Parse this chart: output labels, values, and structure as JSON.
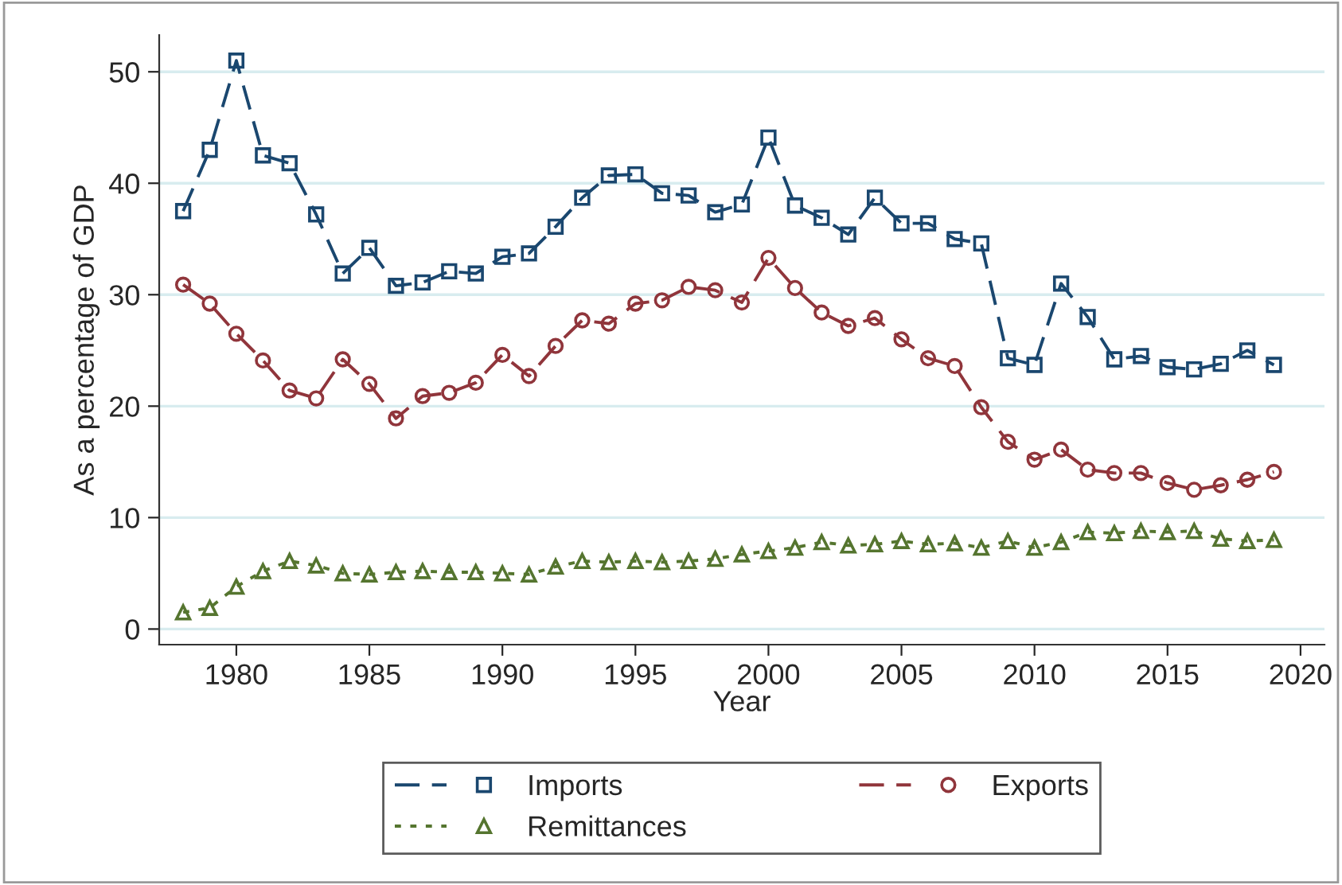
{
  "chart_data": {
    "type": "line",
    "xlabel": "Year",
    "ylabel": "As a percentage of GDP",
    "x": [
      1978,
      1979,
      1980,
      1981,
      1982,
      1983,
      1984,
      1985,
      1986,
      1987,
      1988,
      1989,
      1990,
      1991,
      1992,
      1993,
      1994,
      1995,
      1996,
      1997,
      1998,
      1999,
      2000,
      2001,
      2002,
      2003,
      2004,
      2005,
      2006,
      2007,
      2008,
      2009,
      2010,
      2011,
      2012,
      2013,
      2014,
      2015,
      2016,
      2017,
      2018,
      2019
    ],
    "series": [
      {
        "name": "Imports",
        "color": "#1a476f",
        "marker": "square",
        "line_style": "dashed",
        "values": [
          37.5,
          43,
          51,
          42.5,
          41.8,
          37.2,
          31.9,
          34.2,
          30.8,
          31.1,
          32.1,
          31.9,
          33.4,
          33.7,
          36.1,
          38.7,
          40.7,
          40.8,
          39.1,
          38.9,
          37.4,
          38.1,
          44.1,
          38.0,
          36.9,
          35.4,
          38.7,
          36.4,
          36.4,
          35.0,
          34.6,
          24.3,
          23.7,
          31.0,
          28.0,
          24.2,
          24.5,
          23.5,
          23.3,
          23.8,
          25.0,
          23.7
        ]
      },
      {
        "name": "Exports",
        "color": "#90353b",
        "marker": "circle",
        "line_style": "dashed",
        "values": [
          30.9,
          29.2,
          26.5,
          24.1,
          21.4,
          20.7,
          24.2,
          22.0,
          18.9,
          20.9,
          21.2,
          22.1,
          24.6,
          22.7,
          25.4,
          27.7,
          27.4,
          29.2,
          29.5,
          30.7,
          30.4,
          29.3,
          33.3,
          30.6,
          28.4,
          27.2,
          27.9,
          26.0,
          24.3,
          23.6,
          19.9,
          16.8,
          15.2,
          16.1,
          14.3,
          14.0,
          14.0,
          13.1,
          12.5,
          12.9,
          13.4,
          14.1
        ]
      },
      {
        "name": "Remittances",
        "color": "#55752f",
        "marker": "triangle",
        "line_style": "dotted",
        "values": [
          1.5,
          1.9,
          3.8,
          5.2,
          6.1,
          5.7,
          5.0,
          4.9,
          5.1,
          5.2,
          5.1,
          5.1,
          5.0,
          4.9,
          5.6,
          6.1,
          6.0,
          6.1,
          6.0,
          6.1,
          6.3,
          6.7,
          7.0,
          7.3,
          7.8,
          7.5,
          7.6,
          7.9,
          7.6,
          7.7,
          7.3,
          7.9,
          7.3,
          7.8,
          8.7,
          8.6,
          8.8,
          8.7,
          8.8,
          8.1,
          7.9,
          8.0
        ]
      }
    ],
    "xlim": [
      1977.1,
      2020.9
    ],
    "xticks": [
      1980,
      1985,
      1990,
      1995,
      2000,
      2005,
      2010,
      2015,
      2020
    ],
    "ylim": [
      -1.4,
      53.3
    ],
    "yticks": [
      0,
      10,
      20,
      30,
      40,
      50
    ],
    "grid": "y",
    "legend": "bottom"
  }
}
